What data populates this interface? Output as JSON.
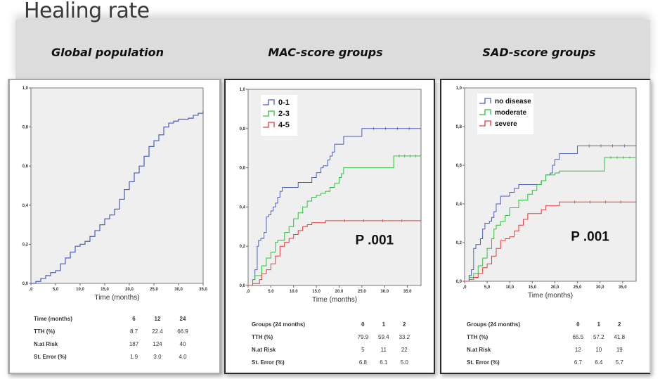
{
  "page": {
    "title": "Healing rate"
  },
  "colors": {
    "series_1": "#4a5fbf",
    "series_2": "#2fbf3f",
    "series_3": "#e83c3c",
    "global": "#4a5fbf",
    "plot_bg": "#efefef",
    "banner_bg": "#dcdcdc"
  },
  "chart_data": [
    {
      "type": "line",
      "subtitle": "Global population",
      "title": "Global population",
      "xlabel": "Time (months)",
      "ylabel": "",
      "xlim": [
        0,
        35
      ],
      "ylim": [
        0,
        1.0
      ],
      "x_ticks": [
        ",0",
        "5,0",
        "10,0",
        "15,0",
        "20,0",
        "25,0",
        "30,0",
        "35,0"
      ],
      "x_tick_values": [
        0,
        5,
        10,
        15,
        20,
        25,
        30,
        35
      ],
      "y_ticks": [
        "0,0",
        "0,2",
        "0,4",
        "0,6",
        "0,8",
        "1,0"
      ],
      "y_tick_values": [
        0,
        0.2,
        0.4,
        0.6,
        0.8,
        1.0
      ],
      "grid": false,
      "legend": null,
      "series": [
        {
          "name": "Global",
          "x": [
            0,
            0.8,
            1,
            2,
            3,
            4,
            5,
            6,
            7,
            8,
            9,
            10,
            11,
            12,
            13,
            14,
            15,
            16,
            17,
            18,
            19,
            20,
            21,
            22,
            23,
            24,
            25,
            26,
            27,
            28,
            29,
            30,
            31,
            32,
            33,
            34,
            35
          ],
          "y": [
            0,
            0,
            0.01,
            0.025,
            0.04,
            0.055,
            0.065,
            0.1,
            0.13,
            0.16,
            0.19,
            0.2,
            0.215,
            0.24,
            0.27,
            0.3,
            0.33,
            0.35,
            0.38,
            0.43,
            0.48,
            0.52,
            0.565,
            0.6,
            0.65,
            0.7,
            0.73,
            0.76,
            0.8,
            0.82,
            0.83,
            0.84,
            0.84,
            0.845,
            0.86,
            0.87,
            0.885
          ]
        }
      ],
      "risk_table": {
        "header_label": "Time (months)",
        "columns": [
          "6",
          "12",
          "24"
        ],
        "rows": [
          {
            "label": "TTH (%)",
            "values": [
              "8.7",
              "22.4",
              "66.9"
            ]
          },
          {
            "label": "N.at Risk",
            "values": [
              "187",
              "124",
              "40"
            ]
          },
          {
            "label": "St. Error (%)",
            "values": [
              "1.9",
              "3.0",
              "4.0"
            ]
          }
        ]
      }
    },
    {
      "type": "line",
      "subtitle": "MAC-score groups",
      "title": "MAC-score groups",
      "xlabel": "Time (months)",
      "ylabel": "",
      "xlim": [
        0,
        38
      ],
      "ylim": [
        0,
        1.0
      ],
      "x_ticks": [
        ",0",
        "5.0",
        "10.0",
        "15.0",
        "20.0",
        "25.0",
        "30.0",
        "35.0"
      ],
      "x_tick_values": [
        0,
        5,
        10,
        15,
        20,
        25,
        30,
        35
      ],
      "y_ticks": [
        "0,0",
        "0,2",
        "0,4",
        "0,6",
        "0,8",
        "1,0"
      ],
      "y_tick_values": [
        0,
        0.2,
        0.4,
        0.6,
        0.8,
        1.0
      ],
      "grid": false,
      "legend": "top-left",
      "annotation": "P .001",
      "series": [
        {
          "name": "0-1",
          "x": [
            0,
            1,
            1.5,
            2,
            2.3,
            2.8,
            3.5,
            4,
            4.5,
            5,
            5.5,
            6,
            6.5,
            7,
            7.5,
            11,
            14,
            15,
            16,
            16.5,
            17.5,
            18,
            18.5,
            19,
            19.5,
            21,
            25,
            38
          ],
          "y": [
            0,
            0.03,
            0.08,
            0.2,
            0.23,
            0.24,
            0.27,
            0.35,
            0.36,
            0.38,
            0.4,
            0.42,
            0.45,
            0.48,
            0.5,
            0.525,
            0.55,
            0.575,
            0.6,
            0.61,
            0.64,
            0.66,
            0.68,
            0.72,
            0.72,
            0.76,
            0.8,
            0.8
          ]
        },
        {
          "name": "2-3",
          "x": [
            0,
            1,
            1.5,
            3,
            4,
            5,
            6,
            6.5,
            7,
            8,
            9,
            10,
            11,
            12,
            13,
            14,
            15,
            16,
            17,
            18,
            19,
            20,
            20.5,
            21,
            25,
            32,
            38
          ],
          "y": [
            0,
            0.03,
            0.05,
            0.1,
            0.14,
            0.17,
            0.22,
            0.23,
            0.23,
            0.27,
            0.3,
            0.34,
            0.37,
            0.4,
            0.43,
            0.45,
            0.46,
            0.47,
            0.48,
            0.5,
            0.52,
            0.55,
            0.57,
            0.6,
            0.6,
            0.66,
            0.66
          ]
        },
        {
          "name": "4-5",
          "x": [
            0,
            1,
            2,
            2.5,
            3,
            4,
            5,
            6,
            7,
            8,
            9,
            10,
            11,
            12,
            13,
            14,
            17,
            38
          ],
          "y": [
            0,
            0.01,
            0.01,
            0.03,
            0.06,
            0.08,
            0.11,
            0.15,
            0.2,
            0.22,
            0.24,
            0.26,
            0.28,
            0.3,
            0.31,
            0.32,
            0.33,
            0.33
          ]
        }
      ],
      "risk_table": {
        "header_label": "Groups (24 months)",
        "columns": [
          "0",
          "1",
          "2"
        ],
        "rows": [
          {
            "label": "TTH (%)",
            "values": [
              "79.9",
              "59.4",
              "33.2"
            ]
          },
          {
            "label": "N.at Risk",
            "values": [
              "5",
              "11",
              "22"
            ]
          },
          {
            "label": "St. Error (%)",
            "values": [
              "6.8",
              "6.1",
              "5.0"
            ]
          }
        ]
      }
    },
    {
      "type": "line",
      "subtitle": "SAD-score groups",
      "title": "SAD-score groups",
      "xlabel": "Time (months)",
      "ylabel": "",
      "xlim": [
        0,
        38
      ],
      "ylim": [
        0,
        1.0
      ],
      "x_ticks": [
        ",0",
        "5,0",
        "10,0",
        "15,0",
        "20,0",
        "25,0",
        "30,0",
        "35,0"
      ],
      "x_tick_values": [
        0,
        5,
        10,
        15,
        20,
        25,
        30,
        35
      ],
      "y_ticks": [
        "0,0",
        "0,2",
        "0,4",
        "0,6",
        "0,8",
        "1,0"
      ],
      "y_tick_values": [
        0,
        0.2,
        0.4,
        0.6,
        0.8,
        1.0
      ],
      "grid": false,
      "legend": "top-left",
      "annotation": "P .001",
      "series": [
        {
          "name": "no disease",
          "x": [
            0,
            1,
            1.5,
            2,
            2.5,
            3.5,
            4,
            4.5,
            5.5,
            6,
            6.5,
            7,
            8,
            10,
            11,
            12,
            16,
            17,
            18,
            19,
            19.5,
            20,
            21,
            25,
            38
          ],
          "y": [
            0,
            0.03,
            0.06,
            0.17,
            0.19,
            0.22,
            0.27,
            0.3,
            0.31,
            0.33,
            0.36,
            0.4,
            0.44,
            0.46,
            0.48,
            0.5,
            0.5,
            0.52,
            0.55,
            0.56,
            0.6,
            0.63,
            0.66,
            0.7,
            0.7
          ]
        },
        {
          "name": "moderate",
          "x": [
            0,
            1,
            2,
            3,
            4,
            5,
            6,
            6.5,
            7,
            8,
            9,
            10,
            12,
            14,
            15,
            16,
            17,
            18,
            20,
            21,
            25,
            31,
            38
          ],
          "y": [
            0,
            0.02,
            0.04,
            0.08,
            0.12,
            0.17,
            0.22,
            0.27,
            0.29,
            0.31,
            0.34,
            0.38,
            0.42,
            0.45,
            0.47,
            0.5,
            0.52,
            0.55,
            0.56,
            0.57,
            0.57,
            0.64,
            0.64
          ]
        },
        {
          "name": "severe",
          "x": [
            0,
            1,
            2,
            3,
            4,
            5,
            6,
            7,
            8,
            9,
            10,
            11,
            12,
            13,
            14,
            15,
            17,
            18,
            19,
            21,
            38
          ],
          "y": [
            0,
            0.01,
            0.02,
            0.04,
            0.07,
            0.09,
            0.13,
            0.17,
            0.21,
            0.22,
            0.23,
            0.26,
            0.29,
            0.32,
            0.35,
            0.35,
            0.37,
            0.39,
            0.39,
            0.41,
            0.41
          ]
        }
      ],
      "risk_table": {
        "header_label": "Groups (24 months)",
        "columns": [
          "0",
          "1",
          "2"
        ],
        "rows": [
          {
            "label": "TTH (%)",
            "values": [
              "65.5",
              "57.2",
              "41.8"
            ]
          },
          {
            "label": "N.at Risk",
            "values": [
              "12",
              "10",
              "19"
            ]
          },
          {
            "label": "St. Error (%)",
            "values": [
              "6.7",
              "6.4",
              "5.7"
            ]
          }
        ]
      }
    }
  ]
}
